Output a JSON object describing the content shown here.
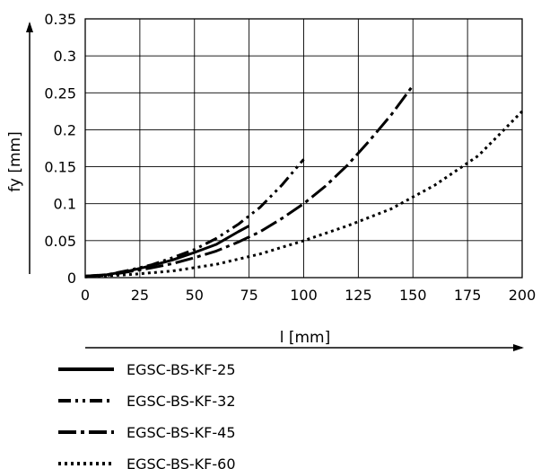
{
  "chart_data": {
    "type": "line",
    "xlabel": "l [mm]",
    "ylabel": "fy [mm]",
    "xlim": [
      0,
      200
    ],
    "ylim": [
      0,
      0.35
    ],
    "xticks": [
      0,
      25,
      50,
      75,
      100,
      125,
      150,
      175,
      200
    ],
    "yticks": [
      0,
      0.05,
      0.1,
      0.15,
      0.2,
      0.25,
      0.3,
      0.35
    ],
    "xtick_labels": [
      "0",
      "25",
      "50",
      "75",
      "100",
      "125",
      "150",
      "175",
      "200"
    ],
    "ytick_labels": [
      "0",
      "0.05",
      "0.1",
      "0.15",
      "0.2",
      "0.25",
      "0.3",
      "0.35"
    ],
    "grid": true,
    "legend_position": "bottom",
    "series": [
      {
        "name": "EGSC-BS-KF-25",
        "style": "solid",
        "x": [
          0,
          10,
          20,
          30,
          40,
          50,
          60,
          70,
          75
        ],
        "y": [
          0.002,
          0.004,
          0.009,
          0.016,
          0.024,
          0.034,
          0.045,
          0.062,
          0.07
        ]
      },
      {
        "name": "EGSC-BS-KF-32",
        "style": "dash-dot-dot",
        "x": [
          0,
          10,
          20,
          30,
          40,
          50,
          60,
          70,
          80,
          90,
          100
        ],
        "y": [
          0.002,
          0.004,
          0.01,
          0.017,
          0.027,
          0.038,
          0.053,
          0.072,
          0.095,
          0.125,
          0.16
        ]
      },
      {
        "name": "EGSC-BS-KF-45",
        "style": "long-dash-dot",
        "x": [
          0,
          10,
          20,
          30,
          40,
          50,
          60,
          70,
          80,
          90,
          100,
          110,
          120,
          130,
          140,
          150
        ],
        "y": [
          0.002,
          0.003,
          0.008,
          0.013,
          0.019,
          0.027,
          0.036,
          0.048,
          0.062,
          0.08,
          0.1,
          0.124,
          0.152,
          0.185,
          0.22,
          0.26
        ]
      },
      {
        "name": "EGSC-BS-KF-60",
        "style": "dotted",
        "x": [
          0,
          20,
          40,
          60,
          80,
          100,
          120,
          140,
          160,
          180,
          200
        ],
        "y": [
          0.001,
          0.004,
          0.009,
          0.018,
          0.032,
          0.05,
          0.07,
          0.093,
          0.125,
          0.165,
          0.225
        ]
      }
    ]
  }
}
